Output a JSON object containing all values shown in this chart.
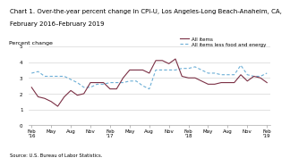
{
  "title_line1": "Chart 1. Over-the-year percent change in CPI-U, Los Angeles-Long Beach-Anaheim, CA,",
  "title_line2": "February 2016–February 2019",
  "ylabel": "Percent change",
  "source": "Source: U.S. Bureau of Labor Statistics.",
  "legend_all_items": "All items",
  "legend_core": "All items less food and energy",
  "ylim": [
    0.0,
    5.0
  ],
  "yticks": [
    0.0,
    1.0,
    2.0,
    3.0,
    4.0,
    5.0
  ],
  "all_items": [
    2.4,
    1.8,
    1.7,
    1.5,
    1.2,
    1.8,
    2.2,
    1.9,
    2.0,
    2.7,
    2.7,
    2.7,
    2.3,
    2.3,
    3.0,
    3.5,
    3.5,
    3.5,
    3.3,
    4.1,
    4.1,
    3.9,
    4.2,
    3.1,
    3.0,
    3.0,
    2.8,
    2.6,
    2.6,
    2.7,
    2.7,
    2.7,
    3.2,
    2.8,
    3.1,
    3.0,
    2.7
  ],
  "core": [
    3.3,
    3.4,
    3.1,
    3.1,
    3.1,
    3.1,
    2.9,
    2.7,
    2.4,
    2.4,
    2.6,
    2.6,
    2.7,
    2.7,
    2.7,
    2.8,
    2.8,
    2.5,
    2.3,
    3.5,
    3.5,
    3.5,
    3.5,
    3.6,
    3.6,
    3.7,
    3.5,
    3.3,
    3.3,
    3.2,
    3.2,
    3.2,
    3.8,
    3.2,
    3.1,
    3.1,
    3.3
  ],
  "major_tick_positions": [
    0,
    3,
    6,
    9,
    12,
    15,
    18,
    21,
    24,
    27,
    30,
    33,
    36
  ],
  "major_tick_labels": [
    "Feb\n'16",
    "May",
    "Aug",
    "Nov",
    "Feb\n'17",
    "May",
    "Aug",
    "Nov",
    "Feb\n'18",
    "May",
    "Aug",
    "Nov",
    "Feb\n'19"
  ],
  "all_items_color": "#7B3045",
  "core_color": "#6BAED6",
  "background_color": "#ffffff",
  "grid_color": "#cccccc",
  "title_fontsize": 5.0,
  "ylabel_fontsize": 4.5,
  "tick_fontsize": 4.0,
  "legend_fontsize": 4.0,
  "source_fontsize": 3.8
}
